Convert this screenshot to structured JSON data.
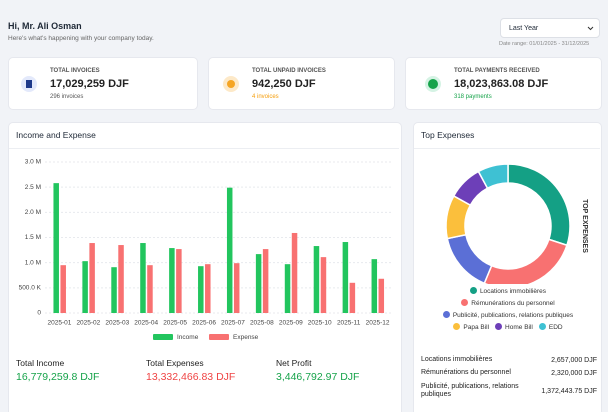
{
  "header": {
    "greeting": "Hi, Mr. Ali Osman",
    "subtitle": "Here's what's happening with your company today.",
    "period": "Last Year",
    "date_range": "Date range: 01/01/2025 - 31/12/2025"
  },
  "kpis": [
    {
      "label": "TOTAL INVOICES",
      "value": "17,029,259 DJF",
      "note": "296 invoices"
    },
    {
      "label": "TOTAL UNPAID INVOICES",
      "value": "942,250 DJF",
      "note": "4 invoices"
    },
    {
      "label": "TOTAL PAYMENTS RECEIVED",
      "value": "18,023,863.08 DJF",
      "note": "318 payments"
    }
  ],
  "income_expense": {
    "type": "bar",
    "title": "Income and Expense",
    "categories": [
      "2025-01",
      "2025-02",
      "2025-03",
      "2025-04",
      "2025-05",
      "2025-06",
      "2025-07",
      "2025-08",
      "2025-09",
      "2025-10",
      "2025-11",
      "2025-12"
    ],
    "series": [
      {
        "name": "Income",
        "color": "#22c55e",
        "values": [
          2580000,
          1030000,
          910000,
          1390000,
          1290000,
          930000,
          2490000,
          1170000,
          970000,
          1330000,
          1410000,
          1070000
        ]
      },
      {
        "name": "Expense",
        "color": "#f87171",
        "values": [
          950000,
          1390000,
          1350000,
          950000,
          1270000,
          970000,
          990000,
          1270000,
          1590000,
          1110000,
          600000,
          680000
        ]
      }
    ],
    "ylim": [
      0,
      3000000
    ],
    "yticks": [
      0,
      {
        "value": 500000,
        "label": "500.0 K"
      },
      {
        "value": 1000000,
        "label": "1.0 M"
      },
      {
        "value": 1500000,
        "label": "1.5 M"
      },
      {
        "value": 2000000,
        "label": "2.0 M"
      },
      {
        "value": 2500000,
        "label": "2.5 M"
      },
      {
        "value": 3000000,
        "label": "3.0 M"
      }
    ],
    "grid": true,
    "summary": [
      {
        "label": "Total Income",
        "value": "16,779,259.8 DJF",
        "color": "#16a34a"
      },
      {
        "label": "Total Expenses",
        "value": "13,332,466.83 DJF",
        "color": "#ef4444"
      },
      {
        "label": "Net Profit",
        "value": "3,446,792.97 DJF",
        "color": "#16a34a"
      }
    ]
  },
  "top_expenses": {
    "type": "donut",
    "title": "Top Expenses",
    "axis_label": "TOP EXPENSES",
    "categories": [
      "Locations immobilières",
      "Rémunérations du personnel",
      "Publicité, publications, relations publiques",
      "Papa Bill",
      "Home Bill",
      "EDD"
    ],
    "values": [
      2657000,
      2320000,
      1372443.75,
      1000000,
      800000,
      700000
    ],
    "value_labels": [
      "2,657,000 DJF",
      "2,320,000 DJF",
      "1,372,443.75 DJF",
      null,
      null,
      null
    ],
    "colors": [
      "#14a085",
      "#f87171",
      "#5b6fd6",
      "#fbbf3c",
      "#6d3fb8",
      "#3ec1d3"
    ]
  }
}
